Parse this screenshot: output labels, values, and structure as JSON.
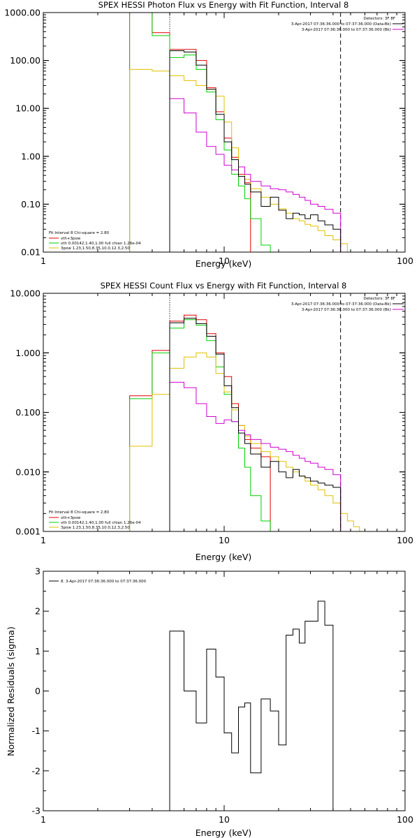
{
  "colors": {
    "data": "#000000",
    "fit_total": "#e00000",
    "vth": "#00d000",
    "bpow": "#e0c000",
    "background": "#d000d0"
  },
  "chart_data": [
    {
      "type": "line",
      "title": "SPEX HESSI Photon Flux vs Energy with Fit Function, Interval 8",
      "xlabel": "Energy (keV)",
      "ylabel": "",
      "x_scale": "log",
      "y_scale": "log",
      "xlim": [
        1,
        100
      ],
      "ylim": [
        0.01,
        1000
      ],
      "x_ticks": [
        "1",
        "10",
        "100"
      ],
      "y_ticks": [
        "1000.00",
        "100.00",
        "10.00",
        "1.00",
        "0.10",
        "0.01"
      ],
      "vlines": [
        {
          "x": 5,
          "style": "dotted"
        },
        {
          "x": 44,
          "style": "dashed"
        }
      ],
      "legend_right": {
        "detectors": "Detectors: 3F 8F",
        "entries": [
          {
            "text": "3-Apr-2017 07:36:36.000 to 07:37:36.000 (Data-Bk)",
            "color": "#000000"
          },
          {
            "text": "3-Apr-2017 07:36:36.000 to 07:37:36.000 (Bk)",
            "color": "#d000d0"
          }
        ]
      },
      "legend_left": {
        "header": "Fit Interval 8   Chi-square = 2.80",
        "entries": [
          {
            "text": "vth+3pow",
            "color": "#e00000"
          },
          {
            "text": "vth 0.00142,1.40,1.00  full chian 1.26e-04",
            "color": "#00d000"
          },
          {
            "text": "3pow 1.23,1.50,8.35,10.0,12.3,2.50",
            "color": "#e0c000"
          }
        ]
      },
      "edges": [
        3,
        4,
        5,
        6,
        7,
        8,
        9,
        10,
        11,
        12,
        13,
        14,
        16,
        18,
        20,
        22,
        24,
        26,
        28,
        30,
        33,
        36,
        40,
        44,
        48,
        52,
        56
      ],
      "series": [
        {
          "color": "#e00000",
          "values": [
            1000,
            380,
            170,
            170,
            100,
            27,
            8.5,
            2.4,
            0.95,
            0.42,
            0.28,
            null,
            null,
            null,
            null,
            null,
            null,
            null,
            null,
            null,
            null,
            null,
            null,
            null,
            null,
            null
          ]
        },
        {
          "color": "#00d000",
          "values": [
            1000,
            330,
            115,
            130,
            65,
            22,
            5.8,
            1.35,
            0.42,
            0.24,
            0.13,
            0.05,
            0.014,
            0.004,
            null,
            null,
            null,
            null,
            null,
            null,
            null,
            null,
            null,
            null,
            null,
            null
          ]
        },
        {
          "color": "#e0c000",
          "values": [
            65,
            60,
            48,
            38,
            30,
            25,
            18,
            5.2,
            1.5,
            0.6,
            0.33,
            0.21,
            0.14,
            0.1,
            0.08,
            0.065,
            0.05,
            0.045,
            0.038,
            0.035,
            0.028,
            0.022,
            0.018,
            0.015,
            0.01,
            0.008
          ]
        },
        {
          "color": "#d000d0",
          "values": [
            null,
            null,
            16,
            8,
            3.2,
            1.6,
            1.1,
            0.65,
            0.52,
            0.6,
            0.42,
            0.3,
            0.24,
            0.21,
            0.2,
            0.18,
            0.16,
            0.14,
            0.12,
            0.1,
            0.09,
            0.078,
            0.065,
            null,
            null,
            null
          ]
        },
        {
          "color": "#000000",
          "values": [
            null,
            null,
            160,
            150,
            80,
            25,
            7.5,
            2,
            0.85,
            0.38,
            0.26,
            0.18,
            0.09,
            0.14,
            0.075,
            0.05,
            0.065,
            0.06,
            0.05,
            0.06,
            0.045,
            0.037,
            0.03,
            null,
            null,
            null
          ]
        }
      ]
    },
    {
      "type": "line",
      "title": "SPEX HESSI Count Flux vs Energy with Fit Function, Interval 8",
      "xlabel": "Energy (keV)",
      "ylabel": "",
      "x_scale": "log",
      "y_scale": "log",
      "xlim": [
        1,
        100
      ],
      "ylim": [
        0.001,
        10
      ],
      "x_ticks": [
        "1",
        "10",
        "100"
      ],
      "y_ticks": [
        "10.000",
        "1.000",
        "0.100",
        "0.010",
        "0.001"
      ],
      "vlines": [
        {
          "x": 5,
          "style": "dotted"
        },
        {
          "x": 44,
          "style": "dashed"
        }
      ],
      "legend_right": {
        "detectors": "Detectors: 3F 8F",
        "entries": [
          {
            "text": "3-Apr-2017 07:36:36.000 to 07:37:36.000 (Data-Bk)",
            "color": "#000000"
          },
          {
            "text": "3-Apr-2017 07:36:36.000 to 07:37:36.000 (Bk)",
            "color": "#d000d0"
          }
        ]
      },
      "legend_left": {
        "header": "Fit Interval 8   Chi-square = 2.80",
        "entries": [
          {
            "text": "vth+3pow",
            "color": "#e00000"
          },
          {
            "text": "vth 0.00142,1.40,1.00  full chian 1.26e-04",
            "color": "#00d000"
          },
          {
            "text": "3pow 1.23,1.50,8.35,10.0,12.3,2.50",
            "color": "#e0c000"
          }
        ]
      },
      "edges": [
        3,
        4,
        5,
        6,
        7,
        8,
        9,
        10,
        11,
        12,
        13,
        14,
        16,
        18,
        20,
        22,
        24,
        26,
        28,
        30,
        33,
        36,
        40,
        44,
        48,
        52,
        56,
        62
      ],
      "series": [
        {
          "color": "#e00000",
          "values": [
            0.19,
            1.1,
            3.4,
            4.3,
            3.6,
            2.1,
            1.0,
            0.4,
            0.14,
            0.06,
            0.035,
            0.025,
            0.018,
            null,
            null,
            null,
            null,
            null,
            null,
            null,
            null,
            null,
            null,
            null,
            null,
            null,
            null
          ]
        },
        {
          "color": "#00d000",
          "values": [
            0.17,
            1.0,
            2.6,
            3.6,
            2.9,
            1.6,
            0.58,
            0.2,
            0.07,
            0.025,
            0.012,
            0.004,
            0.0015,
            null,
            null,
            null,
            null,
            null,
            null,
            null,
            null,
            null,
            null,
            null,
            null,
            null,
            null
          ]
        },
        {
          "color": "#e0c000",
          "values": [
            0.027,
            0.2,
            0.55,
            0.85,
            1.0,
            0.85,
            0.45,
            0.22,
            0.11,
            0.06,
            0.04,
            0.03,
            0.022,
            0.018,
            0.015,
            0.012,
            0.01,
            0.0085,
            0.007,
            0.006,
            0.005,
            0.004,
            0.003,
            0.002,
            0.0015,
            0.0012,
            0.001
          ]
        },
        {
          "color": "#d000d0",
          "values": [
            null,
            null,
            0.32,
            0.26,
            0.14,
            0.085,
            0.065,
            0.075,
            0.07,
            0.05,
            0.042,
            0.035,
            0.03,
            0.026,
            0.024,
            0.022,
            0.019,
            0.017,
            0.015,
            0.014,
            0.012,
            0.011,
            0.009,
            null,
            null,
            null,
            null
          ]
        },
        {
          "color": "#000000",
          "values": [
            null,
            null,
            3.2,
            3.8,
            3.1,
            1.9,
            0.95,
            0.28,
            0.12,
            0.045,
            0.03,
            0.02,
            0.012,
            0.015,
            0.01,
            0.008,
            0.011,
            0.0085,
            0.008,
            0.007,
            0.0065,
            0.006,
            0.0055,
            null,
            null,
            null,
            null
          ]
        }
      ]
    },
    {
      "type": "line",
      "title": "",
      "xlabel": "Energy (keV)",
      "ylabel": "Normalized Residuals (sigma)",
      "x_scale": "log",
      "y_scale": "linear",
      "xlim": [
        1,
        100
      ],
      "ylim": [
        -3,
        3
      ],
      "x_ticks": [
        "1",
        "10",
        "100"
      ],
      "y_ticks": [
        "3",
        "2",
        "1",
        "0",
        "-1",
        "-2",
        "-3"
      ],
      "legend": "8.  3-Apr-2017 07:36:36.000 to 07:37:36.000",
      "edges": [
        5,
        6,
        7,
        8,
        9,
        10,
        11,
        12,
        13,
        14,
        16,
        18,
        20,
        22,
        24,
        26,
        28,
        30,
        33,
        36,
        40,
        44
      ],
      "series": [
        {
          "color": "#000000",
          "values": [
            1.5,
            0.0,
            -0.8,
            1.05,
            0.35,
            -1.05,
            -1.55,
            -0.4,
            -0.3,
            -2.05,
            -0.2,
            -0.5,
            -1.35,
            1.4,
            1.55,
            1.2,
            1.75,
            1.75,
            2.25,
            1.65
          ]
        }
      ]
    }
  ]
}
